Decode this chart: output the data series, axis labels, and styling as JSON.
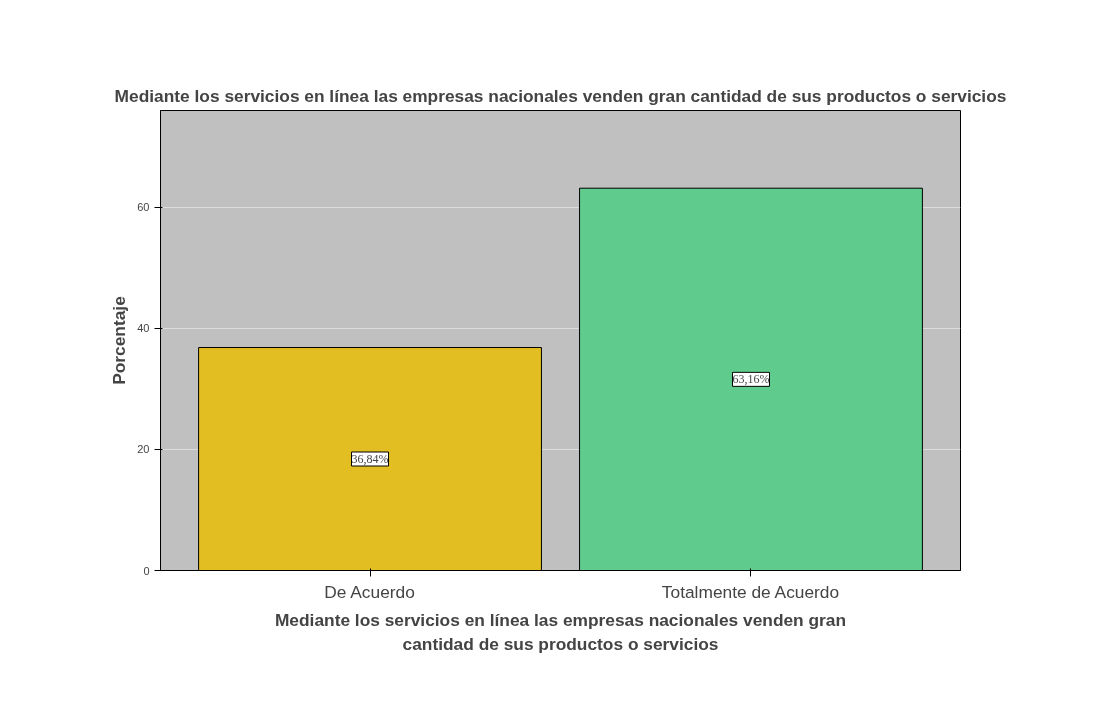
{
  "chart_data": {
    "type": "bar",
    "title": "Mediante los servicios en línea las empresas nacionales venden gran cantidad de sus productos o servicios",
    "xlabel": "Mediante los servicios en línea las empresas nacionales venden gran\ncantidad de sus productos o servicios",
    "ylabel": "Porcentaje",
    "categories": [
      "De Acuerdo",
      "Totalmente de Acuerdo"
    ],
    "values": [
      36.84,
      63.16
    ],
    "colors": [
      "#e3be22",
      "#5fcc8e"
    ],
    "value_labels": [
      "36,84%",
      "63,16%"
    ],
    "ylim": [
      0,
      76
    ],
    "yticks": [
      0,
      20,
      40,
      60
    ],
    "grid": "y"
  }
}
